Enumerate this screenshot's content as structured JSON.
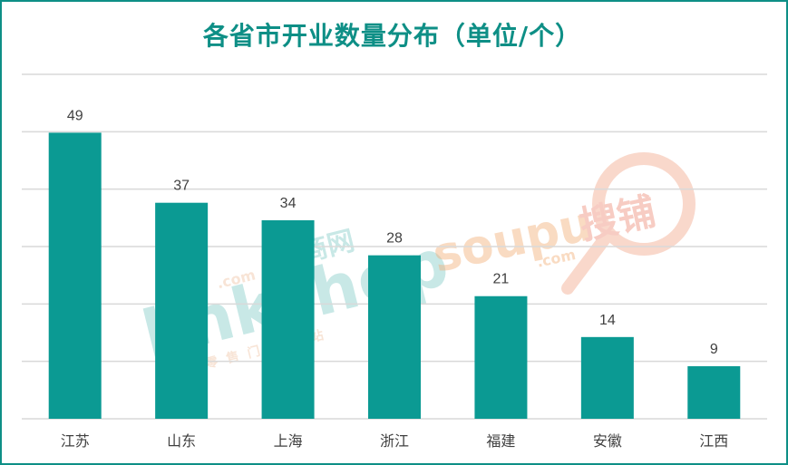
{
  "title": "各省市开业数量分布（单位/个）",
  "colors": {
    "bar": "#0b9a93",
    "frame": "#0e8f86",
    "grid": "#d9d9d9",
    "label": "#404040"
  },
  "watermarks": {
    "left_brand": "linkshop",
    "left_small": ".com",
    "left_cn": "联商网",
    "left_tagline": "中国零售门户网站",
    "right_brand": "soupu",
    "right_small": ".com",
    "right_cn": "搜铺"
  },
  "chart_data": {
    "type": "bar",
    "title": "各省市开业数量分布（单位/个）",
    "categories": [
      "江苏",
      "山东",
      "上海",
      "浙江",
      "福建",
      "安徽",
      "江西"
    ],
    "values": [
      49,
      37,
      34,
      28,
      21,
      14,
      9
    ],
    "ylim": [
      0,
      59
    ],
    "grid": true,
    "data_labels": true,
    "legend": "none"
  }
}
